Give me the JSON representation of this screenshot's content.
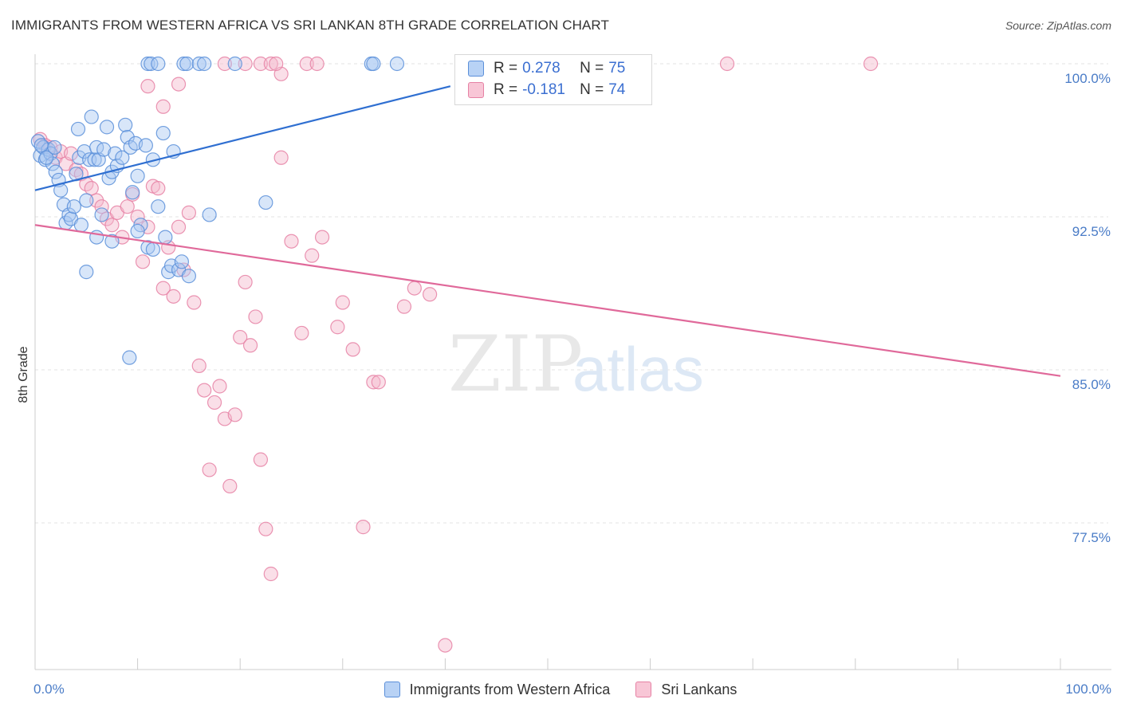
{
  "header": {
    "title": "IMMIGRANTS FROM WESTERN AFRICA VS SRI LANKAN 8TH GRADE CORRELATION CHART",
    "source": "Source: ZipAtlas.com"
  },
  "watermark": {
    "zip": "ZIP",
    "atlas": "atlas"
  },
  "legend_top": {
    "rows": [
      {
        "r_label": "R =",
        "r_value": "0.278",
        "n_label": "N =",
        "n_value": "75"
      },
      {
        "r_label": "R =",
        "r_value": "-0.181",
        "n_label": "N =",
        "n_value": "74"
      }
    ]
  },
  "legend_bottom": {
    "items": [
      {
        "label": "Immigrants from Western Africa"
      },
      {
        "label": "Sri Lankans"
      }
    ]
  },
  "colors": {
    "blue_fill": "#a9c8f2",
    "blue_stroke": "#5b8fd9",
    "blue_line": "#2f6fd1",
    "pink_fill": "#f5b8cb",
    "pink_stroke": "#e681a4",
    "pink_line": "#e0699a",
    "grid": "#e3e3e3",
    "tick_text": "#4a7cc7"
  },
  "chart_data": {
    "type": "scatter",
    "title": "IMMIGRANTS FROM WESTERN AFRICA VS SRI LANKAN 8TH GRADE CORRELATION CHART",
    "xlabel": "",
    "ylabel": "8th Grade",
    "xlim": [
      0,
      100
    ],
    "ylim": [
      70.5,
      100.9
    ],
    "x_ticks": [
      0,
      10,
      20,
      30,
      40,
      50,
      60,
      70,
      80,
      90,
      100
    ],
    "x_tick_labels": [
      {
        "value": 0,
        "label": "0.0%"
      },
      {
        "value": 100,
        "label": "100.0%"
      }
    ],
    "y_ticks": [
      {
        "value": 100.0,
        "label": "100.0%"
      },
      {
        "value": 92.5,
        "label": "92.5%"
      },
      {
        "value": 85.0,
        "label": "85.0%"
      },
      {
        "value": 77.5,
        "label": "77.5%"
      }
    ],
    "grid": true,
    "legend": "top-center",
    "series": [
      {
        "name": "Immigrants from Western Africa",
        "color": "blue",
        "R": 0.278,
        "N": 75,
        "trend": {
          "x": [
            0,
            40.5
          ],
          "y": [
            93.8,
            98.9
          ]
        },
        "points": [
          [
            0.3,
            96.2
          ],
          [
            0.5,
            95.5
          ],
          [
            0.8,
            95.9
          ],
          [
            1.0,
            95.3
          ],
          [
            1.3,
            95.8
          ],
          [
            1.5,
            95.6
          ],
          [
            1.7,
            95.1
          ],
          [
            2.0,
            94.7
          ],
          [
            0.6,
            96.0
          ],
          [
            1.1,
            95.4
          ],
          [
            1.9,
            95.9
          ],
          [
            2.3,
            94.3
          ],
          [
            2.5,
            93.8
          ],
          [
            2.8,
            93.1
          ],
          [
            3.0,
            92.2
          ],
          [
            3.3,
            92.6
          ],
          [
            3.5,
            92.4
          ],
          [
            3.8,
            93.0
          ],
          [
            4.0,
            94.6
          ],
          [
            4.3,
            95.4
          ],
          [
            4.8,
            95.7
          ],
          [
            5.0,
            93.3
          ],
          [
            5.3,
            95.3
          ],
          [
            5.5,
            97.4
          ],
          [
            5.8,
            95.3
          ],
          [
            6.0,
            95.9
          ],
          [
            6.2,
            95.3
          ],
          [
            6.5,
            92.6
          ],
          [
            6.7,
            95.8
          ],
          [
            7.0,
            96.9
          ],
          [
            7.2,
            94.4
          ],
          [
            7.5,
            94.7
          ],
          [
            7.8,
            95.6
          ],
          [
            8.0,
            95.0
          ],
          [
            8.5,
            95.4
          ],
          [
            8.8,
            97.0
          ],
          [
            9.0,
            96.4
          ],
          [
            9.3,
            95.9
          ],
          [
            9.5,
            93.7
          ],
          [
            9.8,
            96.1
          ],
          [
            10.0,
            94.5
          ],
          [
            10.3,
            92.1
          ],
          [
            10.8,
            96.0
          ],
          [
            11.0,
            91.0
          ],
          [
            11.5,
            95.3
          ],
          [
            12.0,
            93.0
          ],
          [
            12.5,
            96.6
          ],
          [
            12.7,
            91.5
          ],
          [
            13.0,
            89.8
          ],
          [
            13.3,
            90.1
          ],
          [
            13.5,
            95.7
          ],
          [
            14.0,
            89.9
          ],
          [
            14.3,
            90.3
          ],
          [
            15.0,
            89.6
          ],
          [
            5.0,
            89.8
          ],
          [
            9.2,
            85.6
          ],
          [
            6.0,
            91.5
          ],
          [
            4.5,
            92.1
          ],
          [
            4.2,
            96.8
          ],
          [
            7.5,
            91.3
          ],
          [
            10.0,
            91.8
          ],
          [
            17.0,
            92.6
          ],
          [
            22.5,
            93.2
          ],
          [
            11.0,
            100.0
          ],
          [
            11.3,
            100.0
          ],
          [
            12.0,
            100.0
          ],
          [
            14.5,
            100.0
          ],
          [
            14.8,
            100.0
          ],
          [
            16.0,
            100.0
          ],
          [
            16.5,
            100.0
          ],
          [
            19.5,
            100.0
          ],
          [
            32.8,
            100.0
          ],
          [
            33.0,
            100.0
          ],
          [
            35.3,
            100.0
          ],
          [
            11.5,
            90.9
          ]
        ]
      },
      {
        "name": "Sri Lankans",
        "color": "pink",
        "R": -0.181,
        "N": 74,
        "trend": {
          "x": [
            0,
            100
          ],
          "y": [
            92.1,
            84.7
          ]
        },
        "points": [
          [
            0.5,
            96.3
          ],
          [
            1.0,
            96.0
          ],
          [
            1.5,
            95.9
          ],
          [
            2.0,
            95.4
          ],
          [
            2.5,
            95.7
          ],
          [
            3.0,
            95.1
          ],
          [
            3.5,
            95.6
          ],
          [
            4.0,
            94.8
          ],
          [
            4.5,
            94.6
          ],
          [
            5.0,
            94.1
          ],
          [
            5.5,
            93.9
          ],
          [
            6.0,
            93.3
          ],
          [
            6.5,
            93.0
          ],
          [
            7.0,
            92.4
          ],
          [
            7.5,
            92.1
          ],
          [
            8.0,
            92.7
          ],
          [
            8.5,
            91.5
          ],
          [
            9.0,
            93.0
          ],
          [
            9.5,
            93.6
          ],
          [
            10.0,
            92.5
          ],
          [
            10.5,
            90.3
          ],
          [
            11.0,
            92.0
          ],
          [
            11.5,
            94.0
          ],
          [
            12.0,
            93.9
          ],
          [
            12.5,
            89.0
          ],
          [
            13.0,
            91.0
          ],
          [
            13.5,
            88.6
          ],
          [
            14.0,
            92.0
          ],
          [
            14.5,
            89.9
          ],
          [
            15.0,
            92.7
          ],
          [
            15.5,
            88.3
          ],
          [
            16.0,
            85.2
          ],
          [
            16.5,
            84.0
          ],
          [
            17.0,
            80.1
          ],
          [
            17.5,
            83.4
          ],
          [
            18.0,
            84.2
          ],
          [
            18.5,
            82.6
          ],
          [
            19.0,
            79.3
          ],
          [
            19.5,
            82.8
          ],
          [
            20.0,
            86.6
          ],
          [
            20.5,
            89.3
          ],
          [
            21.0,
            86.2
          ],
          [
            21.5,
            87.6
          ],
          [
            22.0,
            80.6
          ],
          [
            22.5,
            77.2
          ],
          [
            23.0,
            75.0
          ],
          [
            24.0,
            95.4
          ],
          [
            25.0,
            91.3
          ],
          [
            26.0,
            86.8
          ],
          [
            27.0,
            90.6
          ],
          [
            28.0,
            91.5
          ],
          [
            29.5,
            87.1
          ],
          [
            30.0,
            88.3
          ],
          [
            31.0,
            86.0
          ],
          [
            32.0,
            77.3
          ],
          [
            33.0,
            84.4
          ],
          [
            33.5,
            84.4
          ],
          [
            36.0,
            88.1
          ],
          [
            37.0,
            89.0
          ],
          [
            38.5,
            88.7
          ],
          [
            40.0,
            71.5
          ],
          [
            11.0,
            98.9
          ],
          [
            12.5,
            97.9
          ],
          [
            14.0,
            99.0
          ],
          [
            18.5,
            100.0
          ],
          [
            20.5,
            100.0
          ],
          [
            22.0,
            100.0
          ],
          [
            23.0,
            100.0
          ],
          [
            24.0,
            99.5
          ],
          [
            23.5,
            100.0
          ],
          [
            26.5,
            100.0
          ],
          [
            27.5,
            100.0
          ],
          [
            67.5,
            100.0
          ],
          [
            81.5,
            100.0
          ]
        ]
      }
    ]
  }
}
